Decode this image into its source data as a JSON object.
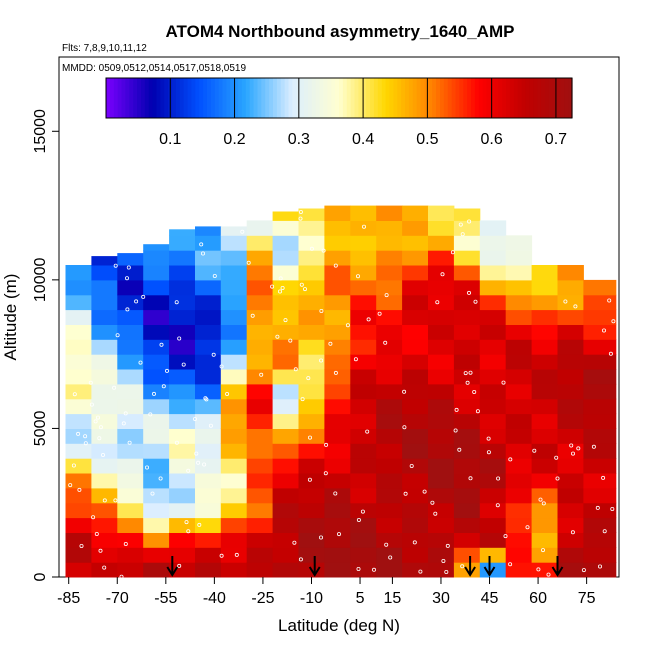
{
  "chart_data": {
    "type": "heatmap",
    "title": "ATOM4 Northbound asymmetry_1640_AMP",
    "flights_note": "Flts: 7,8,9,10,11,12",
    "dates_note": "MMDD: 0509,0512,0514,0517,0518,0519",
    "xlabel": "Latitude (deg N)",
    "ylabel": "Altitude (m)",
    "xlim": [
      -88,
      85
    ],
    "ylim": [
      0,
      17500
    ],
    "x_ticks": [
      "-85",
      "-70",
      "-55",
      "-40",
      "-25",
      "-10",
      "5",
      "15",
      "30",
      "45",
      "60",
      "75"
    ],
    "y_ticks": [
      "0",
      "5000",
      "10000",
      "15000"
    ],
    "colorbar_ticks": [
      "0.1",
      "0.2",
      "0.3",
      "0.4",
      "0.5",
      "0.6",
      "0.7"
    ],
    "colorbar_range": [
      0.0,
      0.725
    ],
    "colormap": [
      "#7b00ff",
      "#0000b0",
      "#0050ff",
      "#2aa6ff",
      "#dceeff",
      "#ffffd0",
      "#ffd700",
      "#ff8000",
      "#ff0000",
      "#c00000",
      "#a01010"
    ],
    "arrows_lat": [
      -53,
      -9,
      39,
      45,
      66
    ],
    "top_altitude": 12500,
    "columns": [
      {
        "lat": [
          -86,
          -78
        ],
        "top": 10500,
        "profile": [
          0.62,
          0.65,
          0.55,
          0.5,
          0.35,
          0.3,
          0.38,
          0.35,
          0.3,
          0.25,
          0.22
        ]
      },
      {
        "lat": [
          -78,
          -70
        ],
        "top": 10800,
        "profile": [
          0.62,
          0.6,
          0.5,
          0.42,
          0.3,
          0.35,
          0.32,
          0.25,
          0.2,
          0.18,
          0.15
        ]
      },
      {
        "lat": [
          -70,
          -62
        ],
        "top": 10900,
        "profile": [
          0.66,
          0.55,
          0.45,
          0.35,
          0.28,
          0.3,
          0.25,
          0.2,
          0.15,
          0.12,
          0.15
        ]
      },
      {
        "lat": [
          -62,
          -54
        ],
        "top": 11200,
        "profile": [
          0.67,
          0.55,
          0.3,
          0.25,
          0.3,
          0.25,
          0.15,
          0.12,
          0.1,
          0.15,
          0.2
        ]
      },
      {
        "lat": [
          -54,
          -46
        ],
        "top": 11700,
        "profile": [
          0.68,
          0.6,
          0.32,
          0.3,
          0.35,
          0.2,
          0.12,
          0.1,
          0.1,
          0.15,
          0.18
        ]
      },
      {
        "lat": [
          -46,
          -38
        ],
        "top": 11800,
        "profile": [
          0.68,
          0.62,
          0.35,
          0.3,
          0.3,
          0.2,
          0.15,
          0.1,
          0.12,
          0.2,
          0.22
        ]
      },
      {
        "lat": [
          -38,
          -30
        ],
        "top": 11800,
        "profile": [
          0.69,
          0.65,
          0.4,
          0.35,
          0.45,
          0.55,
          0.3,
          0.2,
          0.15,
          0.25,
          0.3
        ]
      },
      {
        "lat": [
          -30,
          -22
        ],
        "top": 12000,
        "profile": [
          0.7,
          0.64,
          0.5,
          0.5,
          0.55,
          0.62,
          0.5,
          0.4,
          0.55,
          0.45,
          0.35
        ]
      },
      {
        "lat": [
          -22,
          -14
        ],
        "top": 12300,
        "profile": [
          0.7,
          0.66,
          0.62,
          0.6,
          0.45,
          0.3,
          0.5,
          0.45,
          0.4,
          0.3,
          0.42
        ]
      },
      {
        "lat": [
          -14,
          -6
        ],
        "top": 12400,
        "profile": [
          0.7,
          0.68,
          0.66,
          0.63,
          0.55,
          0.38,
          0.4,
          0.45,
          0.5,
          0.35,
          0.45
        ]
      },
      {
        "lat": [
          -6,
          2
        ],
        "top": 12500,
        "profile": [
          0.7,
          0.69,
          0.68,
          0.66,
          0.6,
          0.55,
          0.45,
          0.5,
          0.55,
          0.48,
          0.42
        ]
      },
      {
        "lat": [
          2,
          10
        ],
        "top": 12500,
        "profile": [
          0.7,
          0.69,
          0.68,
          0.67,
          0.64,
          0.6,
          0.58,
          0.6,
          0.55,
          0.4,
          0.45
        ]
      },
      {
        "lat": [
          10,
          18
        ],
        "top": 12500,
        "profile": [
          0.7,
          0.69,
          0.69,
          0.68,
          0.66,
          0.64,
          0.6,
          0.62,
          0.5,
          0.45,
          0.48
        ]
      },
      {
        "lat": [
          18,
          26
        ],
        "top": 12500,
        "profile": [
          0.7,
          0.69,
          0.69,
          0.68,
          0.67,
          0.65,
          0.63,
          0.64,
          0.58,
          0.42,
          0.46
        ]
      },
      {
        "lat": [
          26,
          34
        ],
        "top": 12500,
        "profile": [
          0.7,
          0.69,
          0.69,
          0.69,
          0.67,
          0.66,
          0.64,
          0.62,
          0.6,
          0.45,
          0.44
        ]
      },
      {
        "lat": [
          34,
          42
        ],
        "top": 12400,
        "profile": [
          0.45,
          0.68,
          0.69,
          0.68,
          0.67,
          0.66,
          0.65,
          0.63,
          0.55,
          0.38,
          0.42
        ]
      },
      {
        "lat": [
          42,
          50
        ],
        "top": 12000,
        "profile": [
          0.15,
          0.66,
          0.62,
          0.66,
          0.66,
          0.65,
          0.63,
          0.6,
          0.5,
          0.3,
          0.35
        ]
      },
      {
        "lat": [
          50,
          58
        ],
        "top": 11500,
        "profile": [
          0.55,
          0.6,
          0.5,
          0.62,
          0.65,
          0.66,
          0.64,
          0.6,
          0.5,
          0.35,
          0.4
        ]
      },
      {
        "lat": [
          58,
          66
        ],
        "top": 10500,
        "profile": [
          0.66,
          0.4,
          0.45,
          0.6,
          0.66,
          0.66,
          0.64,
          0.62,
          0.55,
          0.45,
          0.5
        ]
      },
      {
        "lat": [
          66,
          74
        ],
        "top": 10500,
        "profile": [
          0.68,
          0.62,
          0.62,
          0.64,
          0.66,
          0.66,
          0.66,
          0.64,
          0.6,
          0.5,
          0.5
        ]
      },
      {
        "lat": [
          74,
          84
        ],
        "top": 10000,
        "profile": [
          0.69,
          0.66,
          0.65,
          0.66,
          0.67,
          0.67,
          0.67,
          0.65,
          0.62,
          0.55,
          0.52
        ]
      }
    ]
  }
}
